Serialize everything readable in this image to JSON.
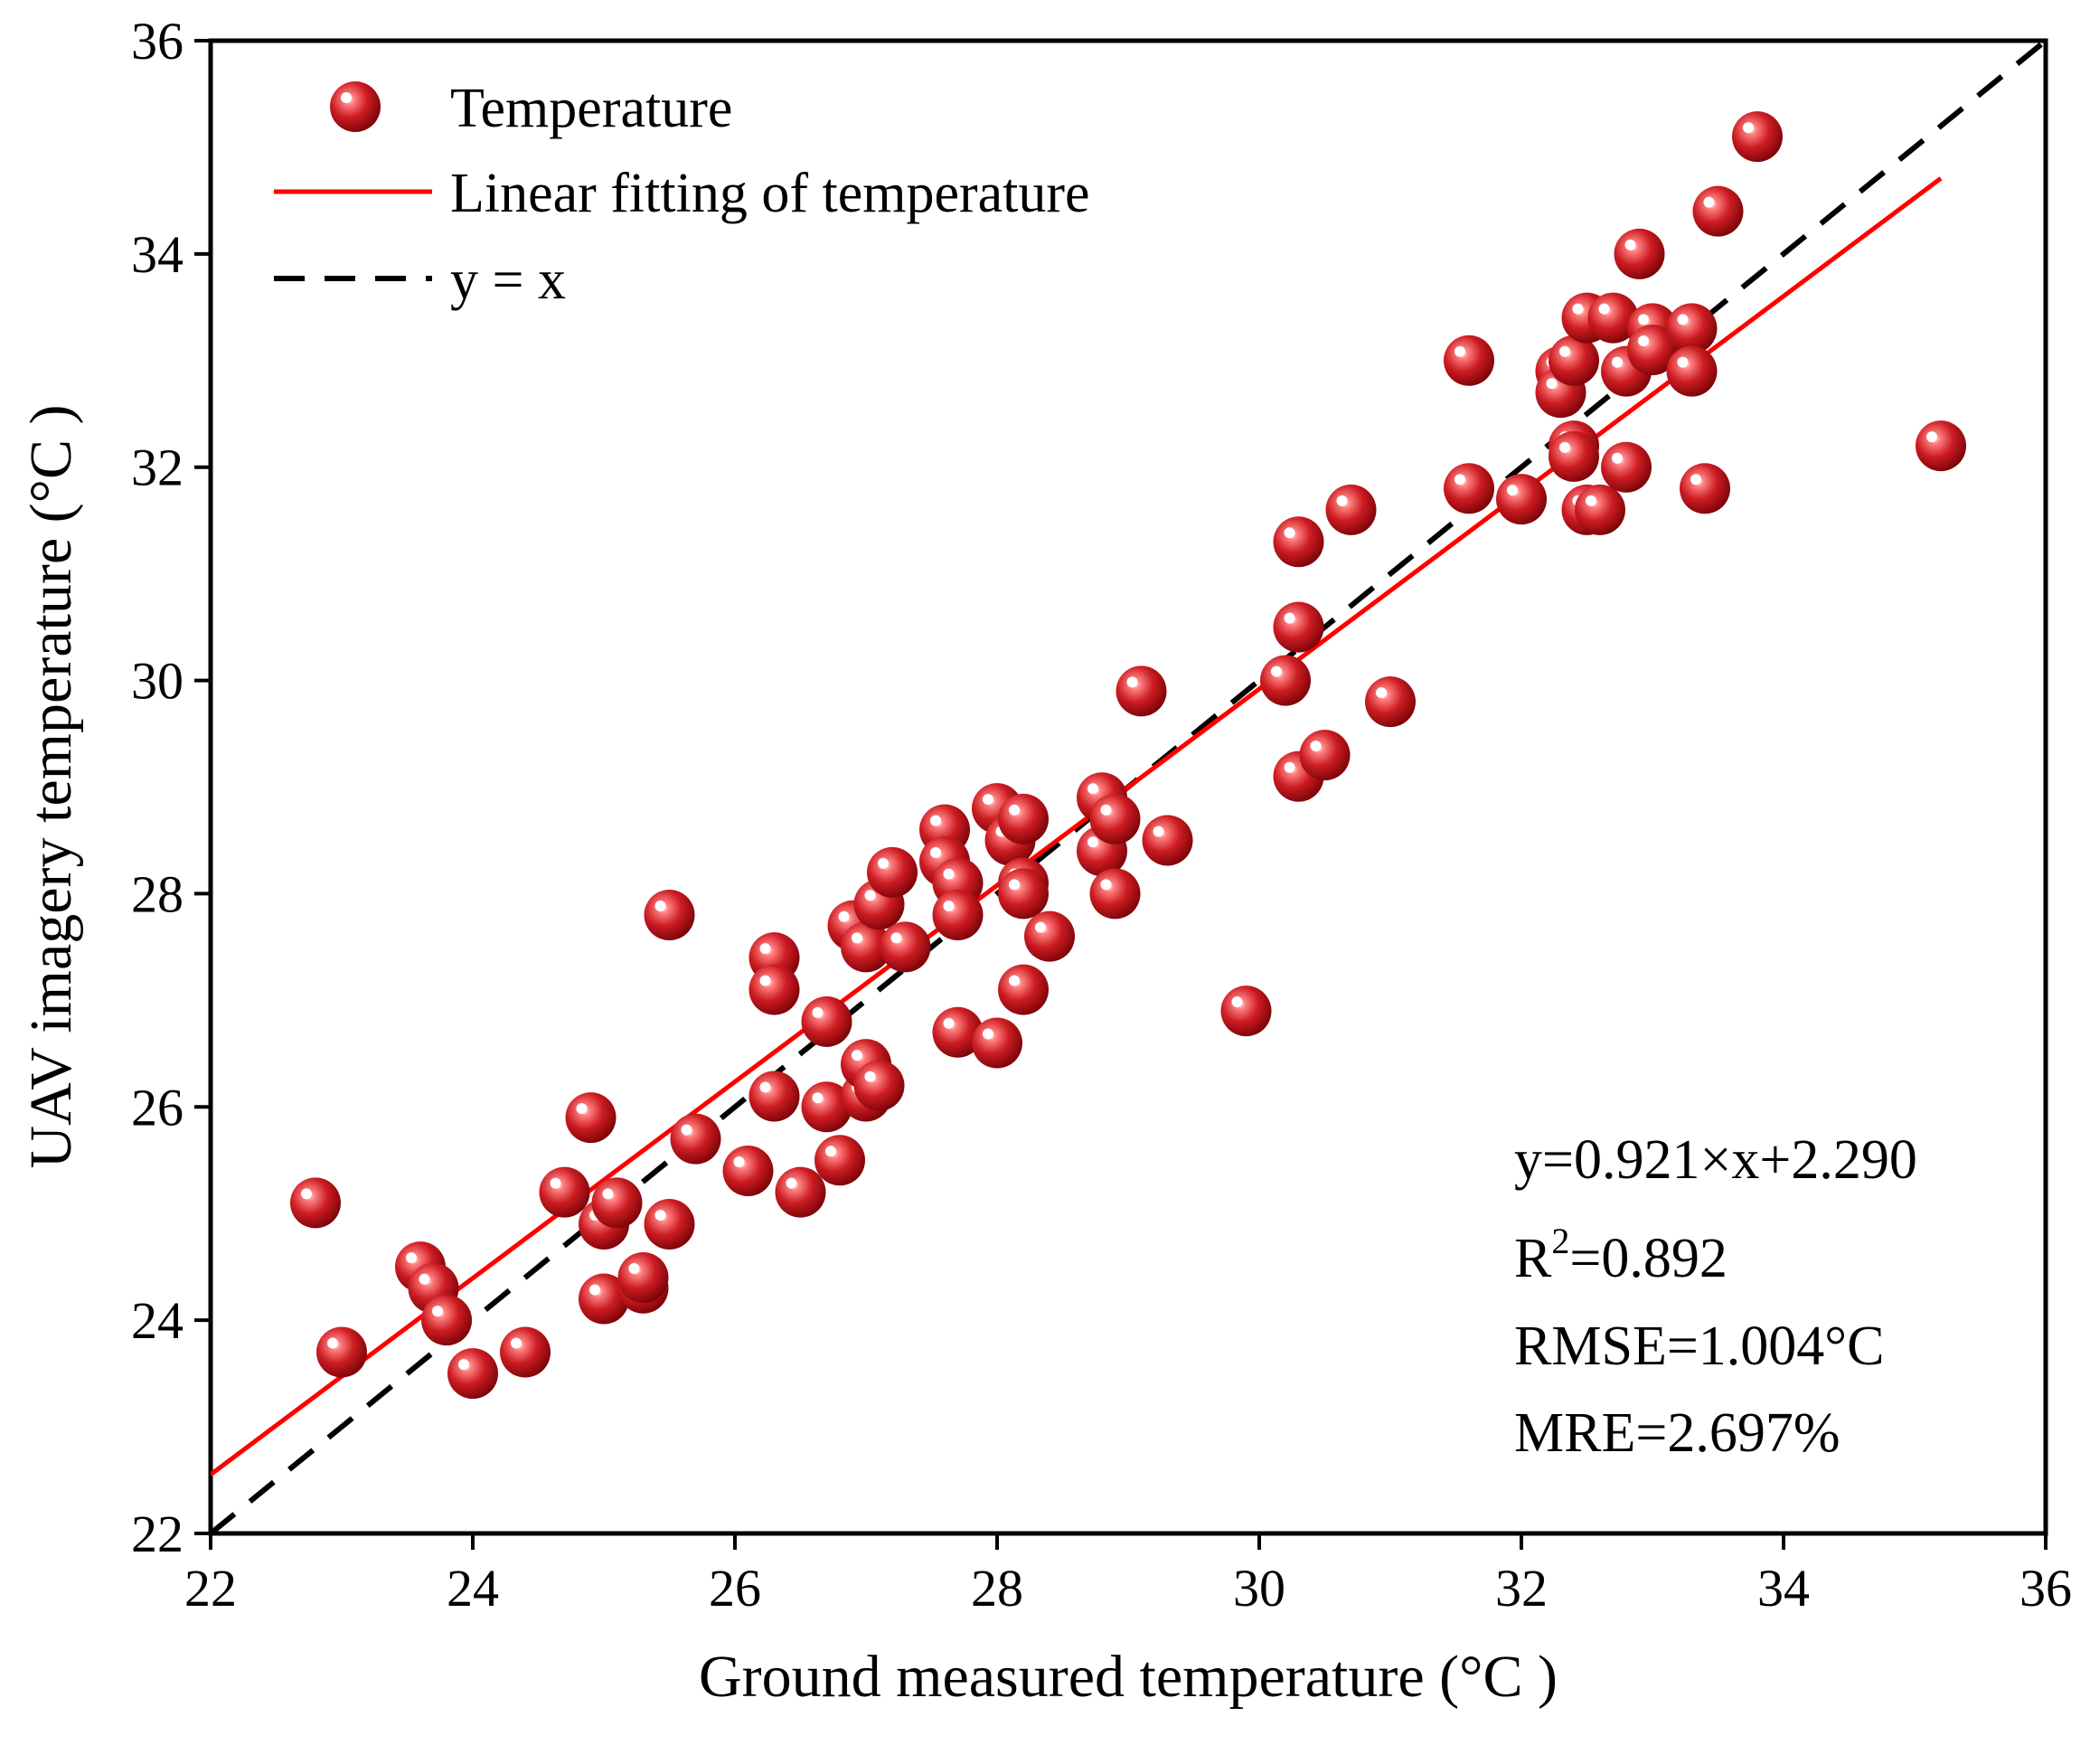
{
  "colors": {
    "point": "#c0141a",
    "point_light": "#ff6a6a",
    "fit_line": "#ff0000",
    "identity_line": "#000000",
    "axis": "#000000"
  },
  "chart_data": {
    "type": "scatter",
    "xlabel": "Ground measured temperature (°C )",
    "ylabel": "UAV imagery temperature (°C )",
    "xlim": [
      22,
      36
    ],
    "ylim": [
      22,
      36
    ],
    "xticks": [
      22,
      24,
      26,
      28,
      30,
      32,
      34,
      36
    ],
    "yticks": [
      22,
      24,
      26,
      28,
      30,
      32,
      34,
      36
    ],
    "legend": {
      "position": "top-left",
      "items": [
        {
          "label": "Temperature",
          "kind": "marker"
        },
        {
          "label": "Linear fitting of temperature",
          "kind": "solid-line"
        },
        {
          "label": "y = x",
          "kind": "dashed-line"
        }
      ]
    },
    "fit": {
      "slope": 0.921,
      "intercept": 2.29,
      "x_range": [
        22,
        35.2
      ]
    },
    "identity": {
      "x_range": [
        22,
        36
      ]
    },
    "stats": {
      "equation": "y=0.921×x+2.290",
      "r2_base": "R",
      "r2_sup": "2",
      "r2_value": "=0.892",
      "rmse": "RMSE=1.004°C",
      "mre": "MRE=2.697%"
    },
    "series": [
      {
        "name": "Temperature",
        "points": [
          [
            22.8,
            25.1
          ],
          [
            23.0,
            23.7
          ],
          [
            23.6,
            24.5
          ],
          [
            23.7,
            24.3
          ],
          [
            23.8,
            24.0
          ],
          [
            24.0,
            23.5
          ],
          [
            24.4,
            23.7
          ],
          [
            24.7,
            25.2
          ],
          [
            24.9,
            25.9
          ],
          [
            25.0,
            24.9
          ],
          [
            25.0,
            24.2
          ],
          [
            25.1,
            25.1
          ],
          [
            25.3,
            24.3
          ],
          [
            25.3,
            24.4
          ],
          [
            25.5,
            24.9
          ],
          [
            25.5,
            27.8
          ],
          [
            25.7,
            25.7
          ],
          [
            26.1,
            25.4
          ],
          [
            26.3,
            27.4
          ],
          [
            26.3,
            27.1
          ],
          [
            26.3,
            26.1
          ],
          [
            26.5,
            25.2
          ],
          [
            26.7,
            26.8
          ],
          [
            26.7,
            26.0
          ],
          [
            26.8,
            25.5
          ],
          [
            26.9,
            27.7
          ],
          [
            27.0,
            26.1
          ],
          [
            27.0,
            26.4
          ],
          [
            27.0,
            27.5
          ],
          [
            27.1,
            27.9
          ],
          [
            27.1,
            26.2
          ],
          [
            27.2,
            28.2
          ],
          [
            27.3,
            27.5
          ],
          [
            27.6,
            28.6
          ],
          [
            27.6,
            28.3
          ],
          [
            27.7,
            28.1
          ],
          [
            27.7,
            27.8
          ],
          [
            27.7,
            26.7
          ],
          [
            28.0,
            26.6
          ],
          [
            28.0,
            28.8
          ],
          [
            28.1,
            28.5
          ],
          [
            28.2,
            28.7
          ],
          [
            28.2,
            28.1
          ],
          [
            28.2,
            28.0
          ],
          [
            28.2,
            27.1
          ],
          [
            28.4,
            27.6
          ],
          [
            28.8,
            28.9
          ],
          [
            28.8,
            28.4
          ],
          [
            28.9,
            28.7
          ],
          [
            28.9,
            28.0
          ],
          [
            29.1,
            29.9
          ],
          [
            29.3,
            28.5
          ],
          [
            29.9,
            26.9
          ],
          [
            30.2,
            30.0
          ],
          [
            30.3,
            30.5
          ],
          [
            30.3,
            29.1
          ],
          [
            30.3,
            31.3
          ],
          [
            30.5,
            29.3
          ],
          [
            30.7,
            31.6
          ],
          [
            31.0,
            29.8
          ],
          [
            31.6,
            33.0
          ],
          [
            31.6,
            31.8
          ],
          [
            32.0,
            31.7
          ],
          [
            32.3,
            32.9
          ],
          [
            32.3,
            32.7
          ],
          [
            32.4,
            32.2
          ],
          [
            32.4,
            32.1
          ],
          [
            32.4,
            33.0
          ],
          [
            32.5,
            33.4
          ],
          [
            32.5,
            31.6
          ],
          [
            32.6,
            31.6
          ],
          [
            32.7,
            33.4
          ],
          [
            32.8,
            32.9
          ],
          [
            32.8,
            32.0
          ],
          [
            32.9,
            34.0
          ],
          [
            33.0,
            33.3
          ],
          [
            33.0,
            33.1
          ],
          [
            33.3,
            33.3
          ],
          [
            33.3,
            32.9
          ],
          [
            33.4,
            31.8
          ],
          [
            33.5,
            34.4
          ],
          [
            33.8,
            35.1
          ],
          [
            35.2,
            32.2
          ]
        ]
      }
    ]
  }
}
